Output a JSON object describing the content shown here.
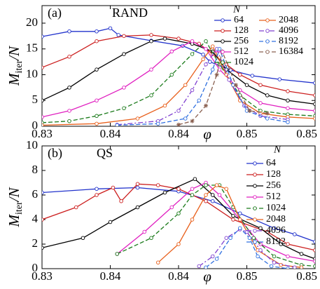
{
  "chart_data": [
    {
      "type": "line",
      "label": "(a)",
      "annotation": "RAND",
      "xlabel": "φ",
      "ylabel": [
        "M",
        "iter",
        "/N"
      ],
      "legend_title": "N",
      "legend": "top-right",
      "xlim": [
        0.83,
        0.85
      ],
      "xticks": [
        0.83,
        {
          "value": 0.835,
          "label": "0.84"
        },
        {
          "value": 0.84,
          "label": "0.84"
        },
        {
          "value": 0.845,
          "label": "0.85"
        },
        0.85
      ],
      "ylim": [
        0,
        23.4
      ],
      "yticks": [
        0,
        5,
        10,
        15,
        20
      ],
      "series": [
        {
          "name": "64",
          "color": "#2233cc",
          "dash": "solid",
          "marker": "circle",
          "x": [
            0.83,
            0.832,
            0.834,
            0.835,
            0.8356,
            0.838,
            0.8403,
            0.8418,
            0.8423,
            0.8438,
            0.8454,
            0.8474,
            0.85
          ],
          "values": [
            17.4,
            18.4,
            18.4,
            19,
            17.7,
            16.6,
            15.6,
            13.9,
            12.5,
            10.9,
            9.8,
            9.1,
            8.4
          ]
        },
        {
          "name": "128",
          "color": "#cc1f1f",
          "dash": "solid",
          "marker": "circle",
          "x": [
            0.83,
            0.832,
            0.834,
            0.836,
            0.838,
            0.84,
            0.8415,
            0.8425,
            0.8435,
            0.8445,
            0.846,
            0.848,
            0.85
          ],
          "values": [
            11.4,
            13.5,
            16.5,
            17.5,
            17.7,
            17,
            16,
            14,
            12,
            10,
            8,
            6.8,
            6
          ]
        },
        {
          "name": "256",
          "color": "#000000",
          "dash": "solid",
          "marker": "circle",
          "x": [
            0.83,
            0.832,
            0.834,
            0.836,
            0.838,
            0.839,
            0.841,
            0.8425,
            0.8435,
            0.845,
            0.8465,
            0.848,
            0.85
          ],
          "values": [
            5,
            7.5,
            11,
            14,
            16.5,
            17,
            16,
            14.5,
            11,
            8,
            6,
            5,
            4.3
          ]
        },
        {
          "name": "512",
          "color": "#e020c0",
          "dash": "solid",
          "marker": "circle",
          "x": [
            0.83,
            0.832,
            0.834,
            0.836,
            0.838,
            0.8395,
            0.841,
            0.842,
            0.843,
            0.8445,
            0.846,
            0.848,
            0.85
          ],
          "values": [
            1.8,
            3,
            5,
            7.5,
            11,
            14.5,
            16.5,
            15,
            11,
            7,
            4.5,
            3.5,
            3
          ]
        },
        {
          "name": "1024",
          "color": "#1a7a1a",
          "dash": "dashed",
          "marker": "circle",
          "x": [
            0.83,
            0.832,
            0.834,
            0.836,
            0.838,
            0.8395,
            0.841,
            0.842,
            0.843,
            0.8445,
            0.846,
            0.848,
            0.85
          ],
          "values": [
            0.7,
            1,
            2,
            3.5,
            6,
            10,
            14,
            16.5,
            12,
            6,
            3,
            2.3,
            2
          ]
        },
        {
          "name": "2048",
          "color": "#e8601c",
          "dash": "solid",
          "marker": "circle",
          "x": [
            0.83,
            0.834,
            0.837,
            0.839,
            0.8405,
            0.8418,
            0.8425,
            0.8435,
            0.8445,
            0.846,
            0.848,
            0.85
          ],
          "values": [
            0.2,
            0.5,
            1.5,
            4,
            8,
            13,
            15.5,
            10,
            5,
            2.5,
            1.8,
            1.5
          ]
        },
        {
          "name": "4096",
          "color": "#8040d0",
          "dash": "dashdot",
          "marker": "circle",
          "x": [
            0.8355,
            0.8385,
            0.84,
            0.841,
            0.842,
            0.8428,
            0.8437,
            0.8448,
            0.846,
            0.848
          ],
          "values": [
            0.3,
            1,
            3,
            7,
            12,
            15,
            9,
            4,
            2,
            1.3
          ]
        },
        {
          "name": "8192",
          "color": "#3070e0",
          "dash": "dashed",
          "marker": "circle",
          "x": [
            0.8355,
            0.8385,
            0.8405,
            0.8415,
            0.8425,
            0.843,
            0.844,
            0.845,
            0.8465,
            0.848
          ],
          "values": [
            0.2,
            0.5,
            1.5,
            5,
            11,
            15,
            8,
            3,
            1.5,
            0.8
          ]
        },
        {
          "name": "16384",
          "color": "#8a6050",
          "dash": "dashed",
          "marker": "star",
          "x": [
            0.84,
            0.841,
            0.842,
            0.8428,
            0.8432,
            0.8442,
            0.8452,
            0.8465
          ],
          "values": [
            0.3,
            1,
            4,
            10,
            14.5,
            8,
            3,
            2.5
          ]
        }
      ]
    },
    {
      "type": "line",
      "label": "(b)",
      "annotation": "QS",
      "xlabel": "φ",
      "ylabel": [
        "M",
        "iter",
        "/N"
      ],
      "legend_title": "N",
      "legend": "top-right",
      "xlim": [
        0.83,
        0.85
      ],
      "xticks": [
        0.83,
        {
          "value": 0.835,
          "label": "0.84"
        },
        {
          "value": 0.84,
          "label": "0.84"
        },
        {
          "value": 0.845,
          "label": "0.85"
        },
        0.85
      ],
      "ylim": [
        0,
        10
      ],
      "yticks": [
        0,
        2,
        4,
        6,
        8,
        10
      ],
      "series": [
        {
          "name": "64",
          "color": "#2233cc",
          "dash": "solid",
          "marker": "circle",
          "x": [
            0.83,
            0.834,
            0.837,
            0.84,
            0.8425,
            0.8445,
            0.847,
            0.8485,
            0.85
          ],
          "values": [
            6.2,
            6.5,
            6.6,
            6.3,
            5.5,
            4.5,
            3.3,
            2.8,
            2.2
          ]
        },
        {
          "name": "128",
          "color": "#cc1f1f",
          "dash": "solid",
          "marker": "circle",
          "x": [
            0.83,
            0.8325,
            0.834,
            0.8352,
            0.8358,
            0.837,
            0.8385,
            0.84,
            0.842,
            0.844,
            0.8465,
            0.848,
            0.85
          ],
          "values": [
            4,
            5,
            6,
            6.6,
            5.5,
            6.9,
            6.8,
            6.5,
            5.5,
            4,
            3,
            2,
            1.5
          ]
        },
        {
          "name": "256",
          "color": "#000000",
          "dash": "solid",
          "marker": "circle",
          "x": [
            0.83,
            0.833,
            0.835,
            0.837,
            0.839,
            0.8412,
            0.8425,
            0.844,
            0.846,
            0.8475,
            0.849,
            0.85
          ],
          "values": [
            1.7,
            2.5,
            3.8,
            5,
            6.2,
            7.3,
            6,
            4.3,
            3.3,
            2,
            1.2,
            0.8
          ]
        },
        {
          "name": "512",
          "color": "#e020c0",
          "dash": "solid",
          "marker": "circle",
          "x": [
            0.8355,
            0.8375,
            0.8395,
            0.841,
            0.842,
            0.843,
            0.8445,
            0.846,
            0.848,
            0.85
          ],
          "values": [
            1.2,
            3,
            5,
            6.5,
            7,
            6,
            4,
            2,
            1,
            0.6
          ]
        },
        {
          "name": "1024",
          "color": "#1a7a1a",
          "dash": "dashed",
          "marker": "circle",
          "x": [
            0.8355,
            0.838,
            0.84,
            0.841,
            0.842,
            0.843,
            0.844,
            0.8455,
            0.847,
            0.849,
            0.85
          ],
          "values": [
            1.2,
            2.5,
            4.5,
            6,
            6.8,
            6.8,
            5,
            2.5,
            1,
            0.3,
            0.2
          ]
        },
        {
          "name": "2048",
          "color": "#e8601c",
          "dash": "solid",
          "marker": "circle",
          "x": [
            0.8385,
            0.84,
            0.841,
            0.842,
            0.8428,
            0.8435,
            0.8445,
            0.8458,
            0.8475,
            0.849
          ],
          "values": [
            0.5,
            2,
            4,
            6,
            6.8,
            6.5,
            4,
            1.5,
            0.3,
            0.1
          ]
        },
        {
          "name": "4096",
          "color": "#8040d0",
          "dash": "dashdot",
          "marker": "circle",
          "x": [
            0.8415,
            0.8425,
            0.8435,
            0.8445,
            0.845,
            0.846,
            0.847,
            0.8485
          ],
          "values": [
            0.2,
            1,
            2.5,
            3.2,
            3,
            1.5,
            0.5,
            0.1
          ]
        },
        {
          "name": "8192",
          "color": "#3070e0",
          "dash": "dashed",
          "marker": "circle",
          "x": [
            0.842,
            0.8428,
            0.8438,
            0.8445,
            0.8452,
            0.8458,
            0.8468,
            0.848
          ],
          "values": [
            0.1,
            0.8,
            2.5,
            3.3,
            2.5,
            1,
            0.2,
            0
          ]
        }
      ]
    }
  ]
}
